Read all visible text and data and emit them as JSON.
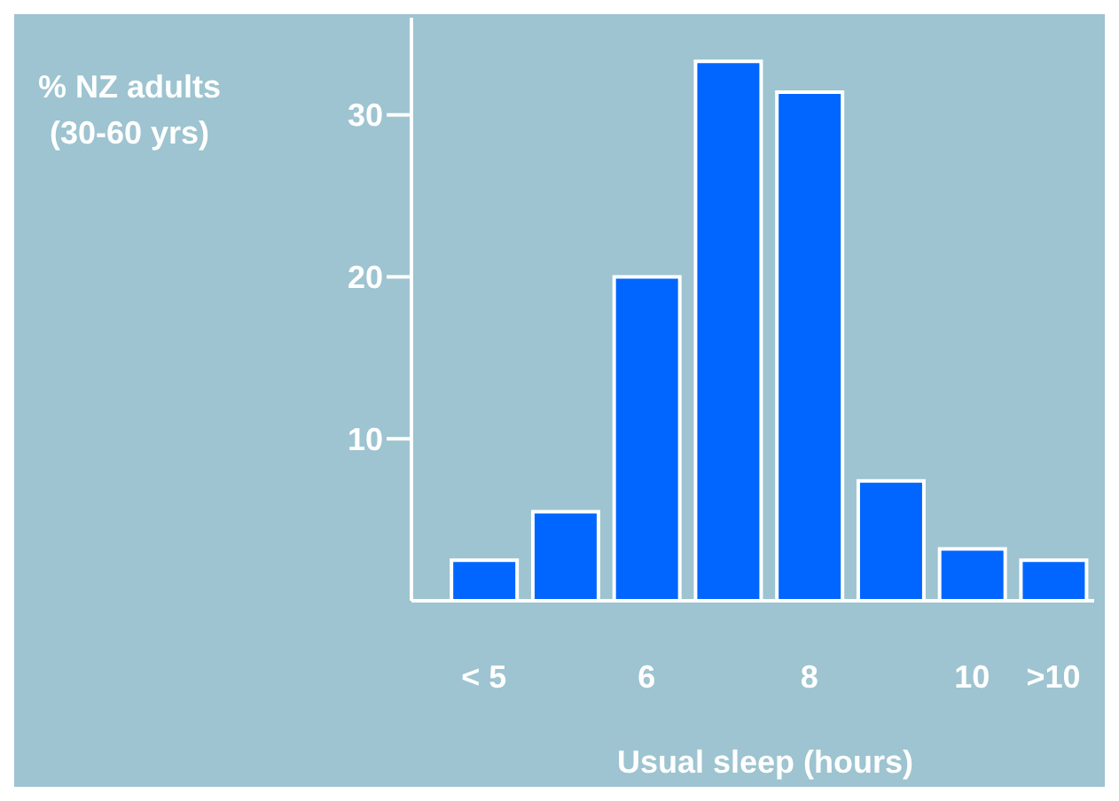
{
  "chart_data": {
    "type": "bar",
    "ylabel": "% NZ adults (30-60 yrs)",
    "xlabel": "Usual sleep (hours)",
    "categories": [
      "< 5",
      null,
      "6",
      null,
      "8",
      null,
      "10",
      ">10"
    ],
    "values": [
      2.5,
      5.5,
      20,
      33.3,
      31.4,
      7.4,
      3.2,
      2.5
    ],
    "color": "#0066ff",
    "ylim": [
      0,
      36
    ],
    "yticks": [
      10,
      20,
      30
    ]
  }
}
